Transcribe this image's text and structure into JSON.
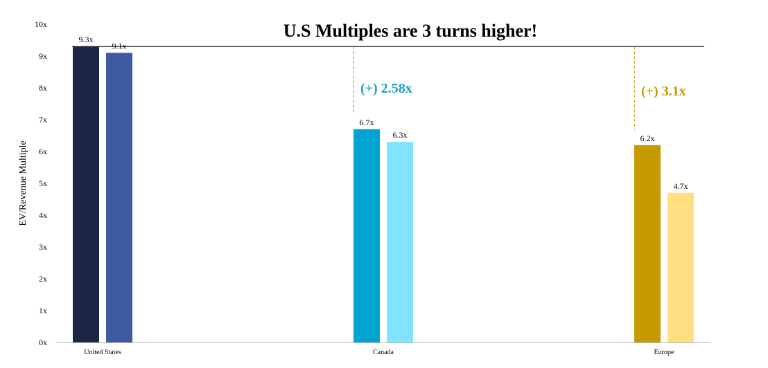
{
  "chart_data": {
    "type": "bar",
    "title": "U.S Multiples are 3 turns higher!",
    "ylabel": "EV/Revenue Multiple",
    "xlabel": "",
    "ylim": [
      0,
      10
    ],
    "yticks": [
      "0x",
      "1x",
      "2x",
      "3x",
      "4x",
      "5x",
      "6x",
      "7x",
      "8x",
      "9x",
      "10x"
    ],
    "grid": false,
    "categories": [
      "United States",
      "Canada",
      "Europe"
    ],
    "groups": [
      {
        "category": "United States",
        "bars": [
          {
            "value": 9.3,
            "label": "9.3x",
            "color": "#1c2645"
          },
          {
            "value": 9.1,
            "label": "9.1x",
            "color": "#3e5aa3"
          }
        ]
      },
      {
        "category": "Canada",
        "bars": [
          {
            "value": 6.7,
            "label": "6.7x",
            "color": "#00a3d2"
          },
          {
            "value": 6.3,
            "label": "6.3x",
            "color": "#80e3ff"
          }
        ],
        "annotation": {
          "text": "(+) 2.58x",
          "color": "#1a9ec7"
        }
      },
      {
        "category": "Europe",
        "bars": [
          {
            "value": 6.2,
            "label": "6.2x",
            "color": "#c79a00"
          },
          {
            "value": 4.7,
            "label": "4.7x",
            "color": "#ffdf80"
          }
        ],
        "annotation": {
          "text": "(+) 3.1x",
          "color": "#c79a00"
        }
      }
    ],
    "reference_line": {
      "value": 9.3
    }
  }
}
